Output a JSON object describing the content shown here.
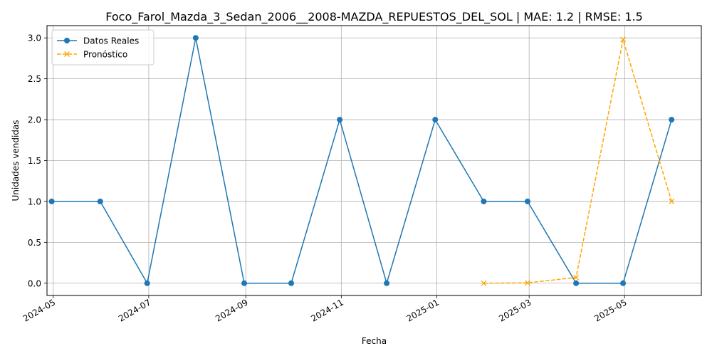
{
  "chart_data": {
    "type": "line",
    "title": "Foco_Farol_Mazda_3_Sedan_2006__2008-MAZDA_REPUESTOS_DEL_SOL | MAE: 1.2 | RMSE: 1.5",
    "xlabel": "Fecha",
    "ylabel": "Unidades vendidas",
    "x_tick_labels": [
      "2024-05",
      "2024-07",
      "2024-09",
      "2024-11",
      "2025-01",
      "2025-03",
      "2025-05"
    ],
    "x_tick_dates": [
      "2024-05-01",
      "2024-07-01",
      "2024-09-01",
      "2024-11-01",
      "2025-01-01",
      "2025-03-01",
      "2025-05-01"
    ],
    "y_tick_labels": [
      "0.0",
      "0.5",
      "1.0",
      "1.5",
      "2.0",
      "2.5",
      "3.0"
    ],
    "y_ticks": [
      0,
      0.5,
      1,
      1.5,
      2,
      2.5,
      3
    ],
    "ylim": [
      -0.15,
      3.15
    ],
    "xlim": [
      "2024-04-27",
      "2025-06-19"
    ],
    "grid": true,
    "legend_position": "top-left",
    "series": [
      {
        "name": "Datos Reales",
        "color": "#1f77b4",
        "marker": "circle",
        "linestyle": "solid",
        "x": [
          "2024-04-30",
          "2024-05-31",
          "2024-06-30",
          "2024-07-31",
          "2024-08-31",
          "2024-09-30",
          "2024-10-31",
          "2024-11-30",
          "2024-12-31",
          "2025-01-31",
          "2025-02-28",
          "2025-03-31",
          "2025-04-30",
          "2025-05-31"
        ],
        "y": [
          1,
          1,
          0,
          3,
          0,
          0,
          2,
          0,
          2,
          1,
          1,
          0,
          0,
          2
        ]
      },
      {
        "name": "Pronóstico",
        "color": "#ffa500",
        "marker": "x",
        "linestyle": "dashed",
        "x": [
          "2025-01-31",
          "2025-02-28",
          "2025-03-31",
          "2025-04-30",
          "2025-05-31"
        ],
        "y": [
          0.0,
          0.005,
          0.07,
          2.98,
          1.0
        ]
      }
    ]
  }
}
